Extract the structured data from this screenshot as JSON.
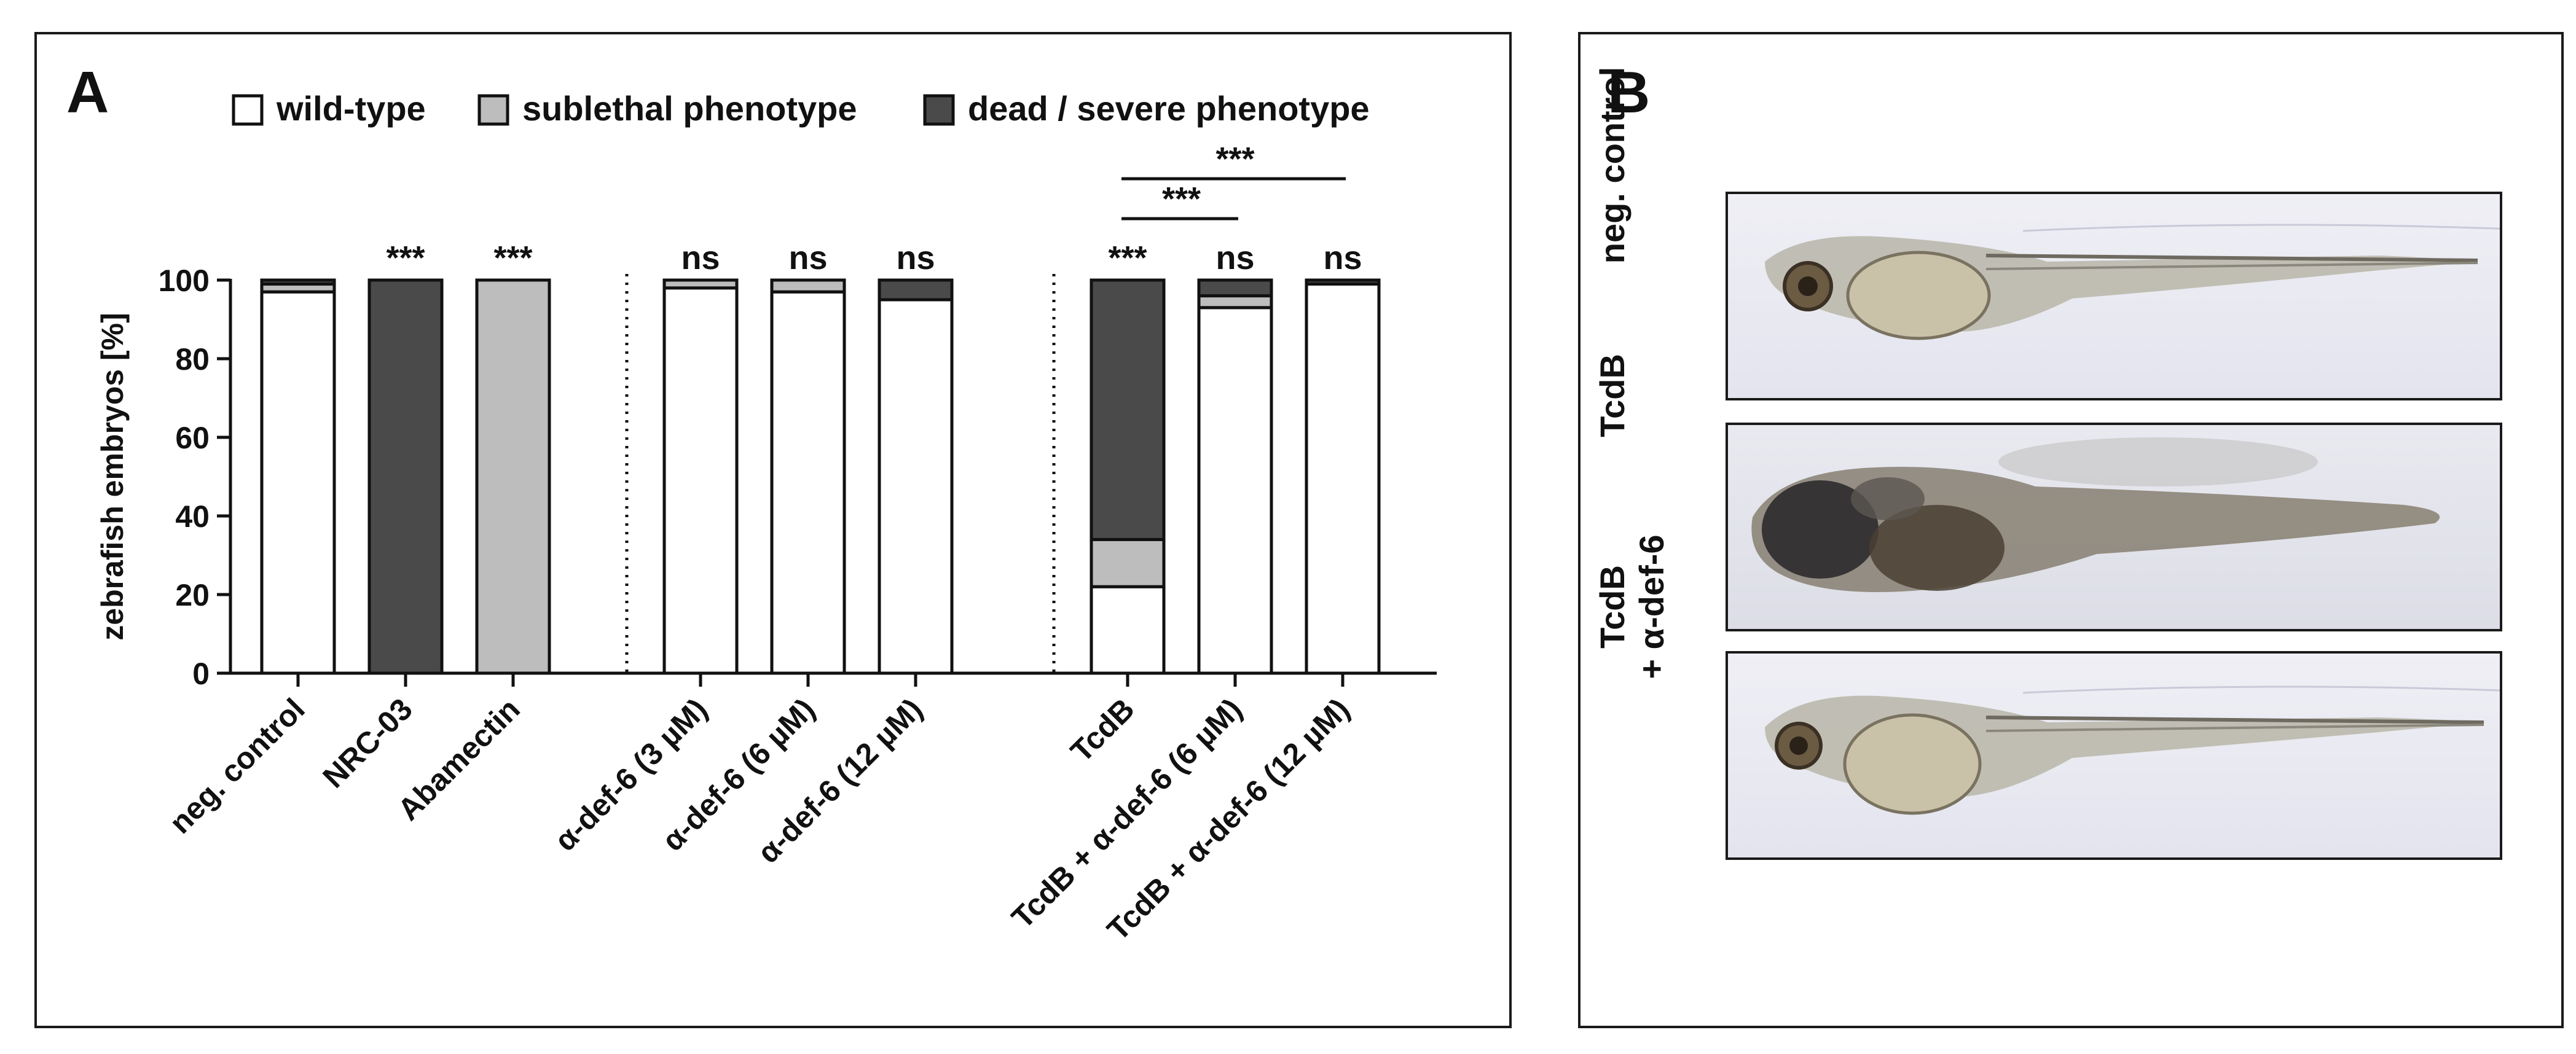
{
  "panels": {
    "a_letter": "A",
    "b_letter": "B"
  },
  "legend": {
    "wild_type": "wild-type",
    "sublethal": "sublethal phenotype",
    "dead": "dead / severe phenotype"
  },
  "colors": {
    "wild_type": "#ffffff",
    "sublethal": "#bdbdbd",
    "dead": "#4a4a4a",
    "axis": "#111111"
  },
  "chart_data": {
    "type": "bar",
    "stacked": true,
    "title": "",
    "xlabel": "",
    "ylabel": "zebrafish embryos [%]",
    "ylim": [
      0,
      100
    ],
    "yticks": [
      0,
      20,
      40,
      60,
      80,
      100
    ],
    "categories": [
      "neg. control",
      "NRC-03",
      "Abamectin",
      "α-def-6 (3 µM)",
      "α-def-6 (6 µM)",
      "α-def-6 (12 µM)",
      "TcdB",
      "TcdB + α-def-6 (6 µM)",
      "TcdB + α-def-6 (12 µM)"
    ],
    "groups": [
      [
        0,
        1,
        2
      ],
      [
        3,
        4,
        5
      ],
      [
        6,
        7,
        8
      ]
    ],
    "series": [
      {
        "name": "wild-type",
        "values": [
          97,
          0,
          0,
          98,
          97,
          95,
          22,
          93,
          99
        ]
      },
      {
        "name": "sublethal phenotype",
        "values": [
          2,
          0,
          100,
          2,
          3,
          0,
          12,
          3,
          0
        ]
      },
      {
        "name": "dead / severe phenotype",
        "values": [
          1,
          100,
          0,
          0,
          0,
          5,
          66,
          4,
          1
        ]
      }
    ],
    "significance": [
      "",
      "***",
      "***",
      "ns",
      "ns",
      "ns",
      "***",
      "ns",
      "ns"
    ],
    "brackets": [
      {
        "from": 6,
        "to": 7,
        "label": "***"
      },
      {
        "from": 6,
        "to": 8,
        "label": "***"
      }
    ]
  },
  "panel_b": {
    "labels": [
      {
        "lines": [
          "neg. control"
        ]
      },
      {
        "lines": [
          "TcdB"
        ]
      },
      {
        "lines": [
          "TcdB",
          "+ α-def-6"
        ]
      }
    ]
  }
}
